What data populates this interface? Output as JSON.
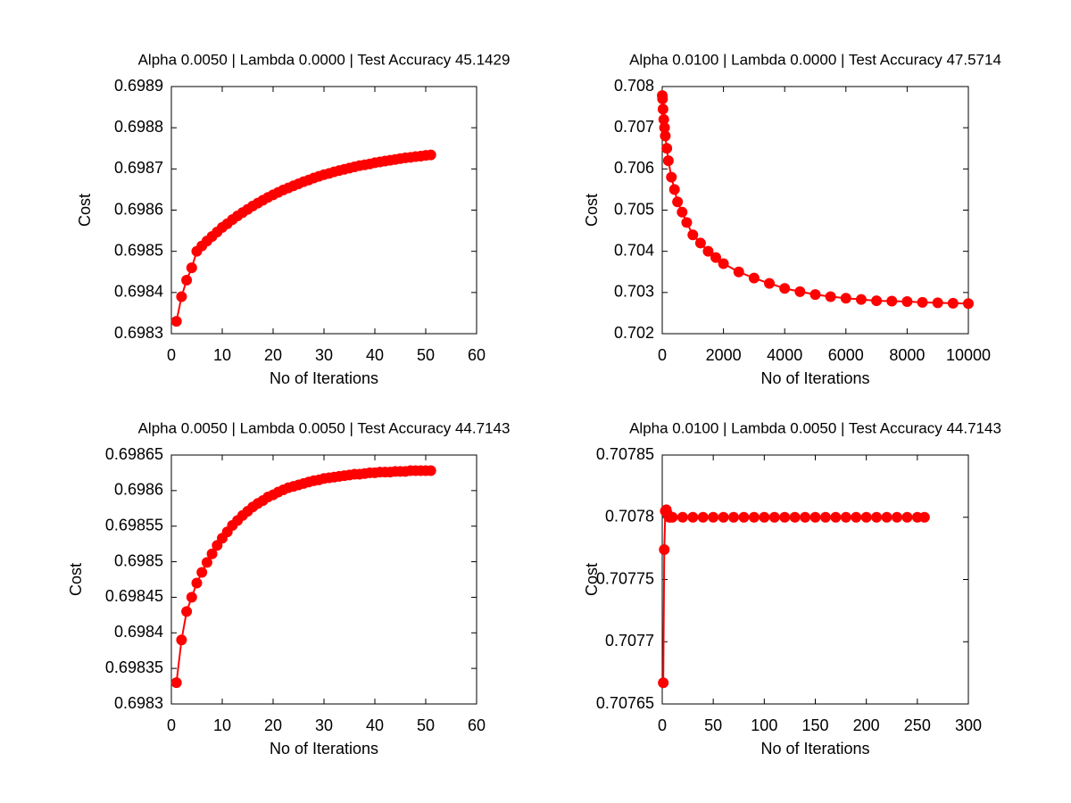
{
  "chart_data": [
    {
      "type": "line",
      "title": "Alpha 0.0050 | Lambda 0.0000 | Test Accuracy 45.1429",
      "xlabel": "No of Iterations",
      "ylabel": "Cost",
      "color": "#ff0000",
      "x": [
        1,
        2,
        3,
        4,
        5,
        6,
        7,
        8,
        9,
        10,
        11,
        12,
        13,
        14,
        15,
        16,
        17,
        18,
        19,
        20,
        21,
        22,
        23,
        24,
        25,
        26,
        27,
        28,
        29,
        30,
        31,
        32,
        33,
        34,
        35,
        36,
        37,
        38,
        39,
        40,
        41,
        42,
        43,
        44,
        45,
        46,
        47,
        48,
        49,
        50,
        51
      ],
      "values": [
        0.69833,
        0.69839,
        0.69843,
        0.69846,
        0.6985,
        0.698513,
        0.698525,
        0.698536,
        0.698547,
        0.698558,
        0.698567,
        0.698577,
        0.698586,
        0.698594,
        0.698602,
        0.69861,
        0.698617,
        0.698624,
        0.698631,
        0.698637,
        0.698643,
        0.698649,
        0.698654,
        0.698659,
        0.698664,
        0.698669,
        0.698673,
        0.698678,
        0.698682,
        0.698686,
        0.698689,
        0.698693,
        0.698696,
        0.698699,
        0.698702,
        0.698705,
        0.698708,
        0.69871,
        0.698712,
        0.698715,
        0.698717,
        0.698719,
        0.698721,
        0.698723,
        0.698725,
        0.698727,
        0.698728,
        0.69873,
        0.698731,
        0.698733,
        0.698734
      ],
      "xlim": [
        0,
        60
      ],
      "xticks": [
        0,
        10,
        20,
        30,
        40,
        50,
        60
      ],
      "ylim": [
        0.6983,
        0.6989
      ],
      "yticks": [
        0.6983,
        0.6984,
        0.6985,
        0.6986,
        0.6987,
        0.6988,
        0.6989
      ]
    },
    {
      "type": "line",
      "title": "Alpha 0.0100 | Lambda 0.0000 | Test Accuracy 47.5714",
      "xlabel": "No of Iterations",
      "ylabel": "Cost",
      "color": "#ff0000",
      "x": [
        1,
        10,
        25,
        50,
        75,
        100,
        150,
        200,
        300,
        400,
        500,
        650,
        800,
        1000,
        1250,
        1500,
        1750,
        2000,
        2500,
        3000,
        3500,
        4000,
        4500,
        5000,
        5500,
        6000,
        6500,
        7000,
        7500,
        8000,
        8500,
        9000,
        9500,
        10000
      ],
      "values": [
        0.70778,
        0.7077,
        0.70745,
        0.7072,
        0.707,
        0.7068,
        0.7065,
        0.7062,
        0.7058,
        0.7055,
        0.7052,
        0.70495,
        0.7047,
        0.7044,
        0.7042,
        0.704,
        0.70385,
        0.7037,
        0.7035,
        0.70335,
        0.70322,
        0.7031,
        0.70302,
        0.70295,
        0.7029,
        0.70286,
        0.70283,
        0.7028,
        0.70279,
        0.70278,
        0.70276,
        0.70275,
        0.70274,
        0.70273
      ],
      "xlim": [
        0,
        10000
      ],
      "xticks": [
        0,
        2000,
        4000,
        6000,
        8000,
        10000
      ],
      "ylim": [
        0.702,
        0.708
      ],
      "yticks": [
        0.702,
        0.703,
        0.704,
        0.705,
        0.706,
        0.707,
        0.708
      ]
    },
    {
      "type": "line",
      "title": "Alpha 0.0050 | Lambda 0.0050 | Test Accuracy 44.7143",
      "xlabel": "No of Iterations",
      "ylabel": "Cost",
      "color": "#ff0000",
      "x": [
        1,
        2,
        3,
        4,
        5,
        6,
        7,
        8,
        9,
        10,
        11,
        12,
        13,
        14,
        15,
        16,
        17,
        18,
        19,
        20,
        21,
        22,
        23,
        24,
        25,
        26,
        27,
        28,
        29,
        30,
        31,
        32,
        33,
        34,
        35,
        36,
        37,
        38,
        39,
        40,
        41,
        42,
        43,
        44,
        45,
        46,
        47,
        48,
        49,
        50,
        51
      ],
      "values": [
        0.69833,
        0.69839,
        0.69843,
        0.69845,
        0.69847,
        0.698485,
        0.698499,
        0.698511,
        0.698523,
        0.698533,
        0.698542,
        0.698551,
        0.698558,
        0.698565,
        0.698571,
        0.698577,
        0.698582,
        0.698586,
        0.698591,
        0.698594,
        0.698598,
        0.698601,
        0.698604,
        0.698606,
        0.698608,
        0.69861,
        0.698612,
        0.698614,
        0.698615,
        0.698617,
        0.698618,
        0.698619,
        0.69862,
        0.698621,
        0.698622,
        0.698623,
        0.698623,
        0.698624,
        0.698625,
        0.698625,
        0.698626,
        0.698626,
        0.698626,
        0.698627,
        0.698627,
        0.698627,
        0.698628,
        0.698628,
        0.698628,
        0.698628,
        0.698628
      ],
      "xlim": [
        0,
        60
      ],
      "xticks": [
        0,
        10,
        20,
        30,
        40,
        50,
        60
      ],
      "ylim": [
        0.6983,
        0.69865
      ],
      "yticks": [
        0.6983,
        0.69835,
        0.6984,
        0.69845,
        0.6985,
        0.69855,
        0.6986,
        0.69865
      ]
    },
    {
      "type": "line",
      "title": "Alpha 0.0100 | Lambda 0.0050 | Test Accuracy 44.7143",
      "xlabel": "No of Iterations",
      "ylabel": "Cost",
      "color": "#ff0000",
      "x": [
        1,
        2,
        3,
        4,
        5,
        6,
        7,
        8,
        10,
        20,
        30,
        40,
        50,
        60,
        70,
        80,
        90,
        100,
        110,
        120,
        130,
        140,
        150,
        160,
        170,
        180,
        190,
        200,
        210,
        220,
        230,
        240,
        250,
        257
      ],
      "values": [
        0.707667,
        0.707774,
        0.707805,
        0.707806,
        0.707803,
        0.707801,
        0.7078,
        0.7078,
        0.7078,
        0.7078,
        0.7078,
        0.7078,
        0.7078,
        0.7078,
        0.7078,
        0.7078,
        0.7078,
        0.7078,
        0.7078,
        0.7078,
        0.7078,
        0.7078,
        0.7078,
        0.7078,
        0.7078,
        0.7078,
        0.7078,
        0.7078,
        0.7078,
        0.7078,
        0.7078,
        0.7078,
        0.7078,
        0.7078
      ],
      "xlim": [
        0,
        300
      ],
      "xticks": [
        0,
        50,
        100,
        150,
        200,
        250,
        300
      ],
      "ylim": [
        0.70765,
        0.70785
      ],
      "yticks": [
        0.70765,
        0.7077,
        0.70775,
        0.7078,
        0.70785
      ]
    }
  ]
}
